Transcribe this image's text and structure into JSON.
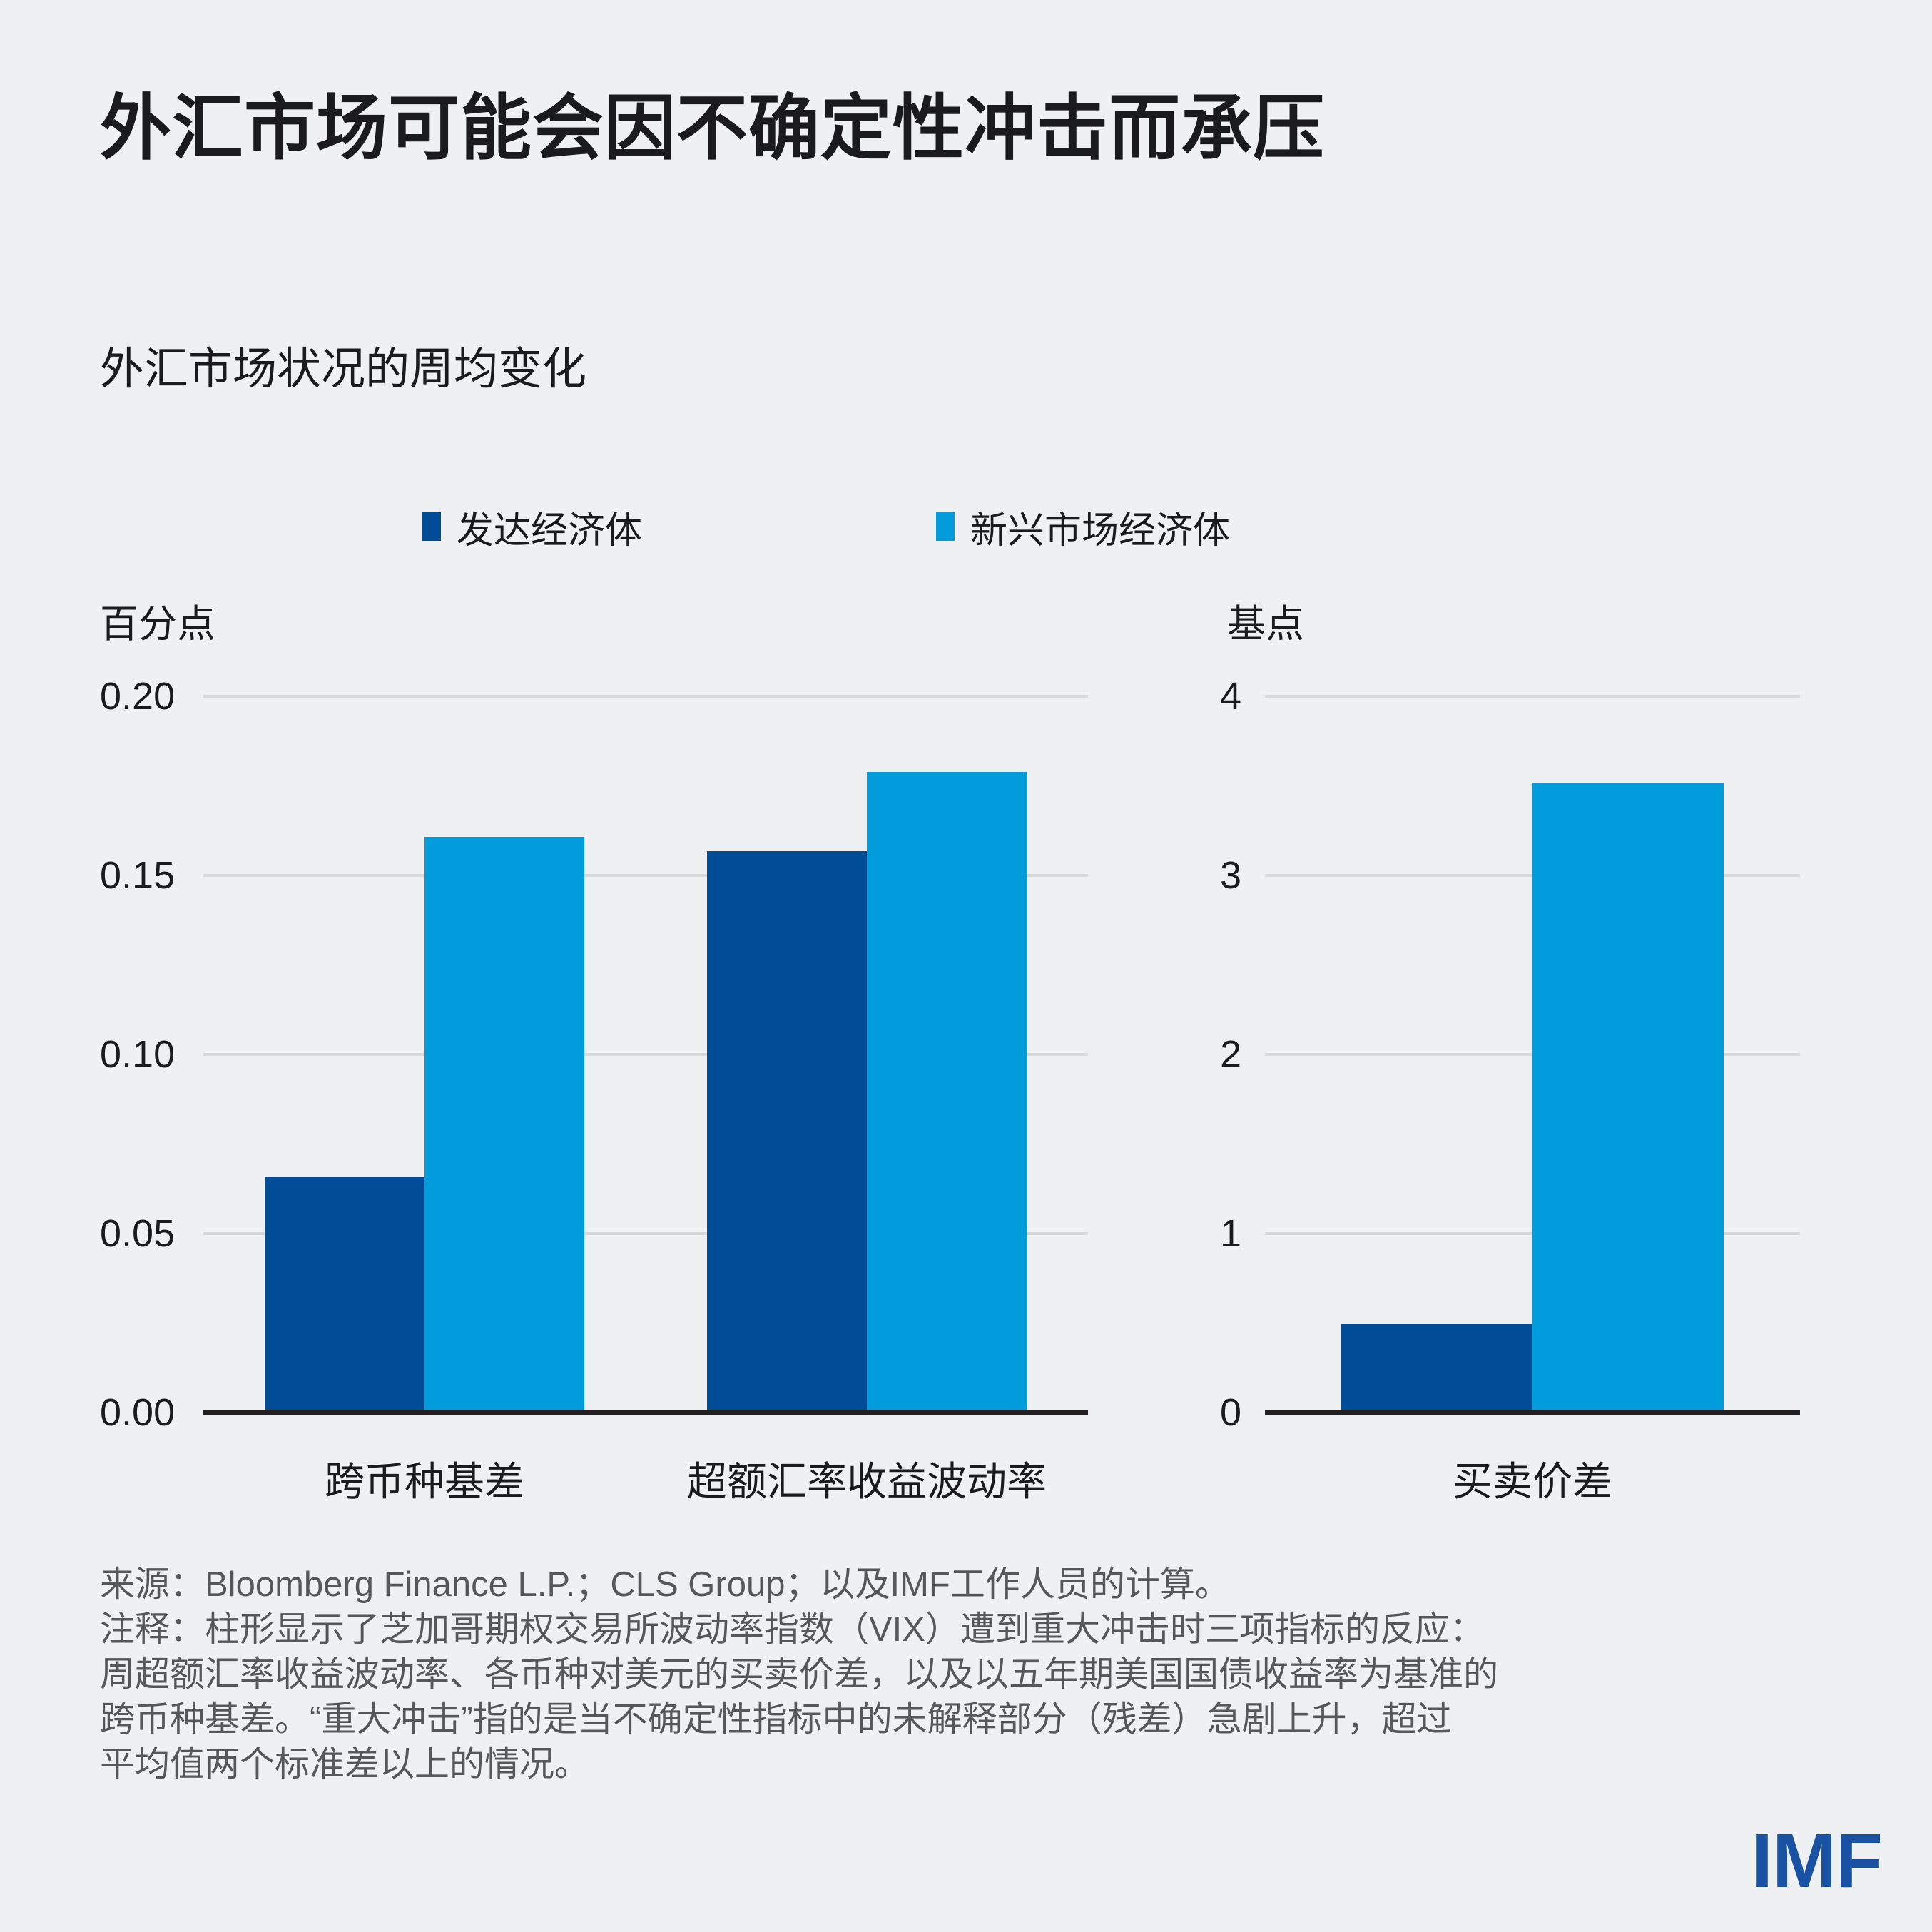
{
  "header": {
    "title": "外汇市场可能会因不确定性冲击而承压"
  },
  "chart": {
    "subtitle": "外汇市场状况的周均变化",
    "legend": [
      {
        "label": "发达经济体",
        "color": "#004C96"
      },
      {
        "label": "新兴市场经济体",
        "color": "#009CDB"
      }
    ]
  },
  "chart_data": [
    {
      "type": "bar",
      "title": "外汇市场状况的周均变化",
      "ylabel": "百分点",
      "categories": [
        "跨币种基差",
        "超额汇率收益波动率"
      ],
      "series": [
        {
          "name": "发达经济体",
          "color": "#004C96",
          "values": [
            0.065,
            0.156
          ]
        },
        {
          "name": "新兴市场经济体",
          "color": "#009CDB",
          "values": [
            0.16,
            0.178
          ]
        }
      ],
      "ylim": [
        0,
        0.2
      ],
      "yticks": [
        "0.20",
        "0.15",
        "0.10",
        "0.05",
        "0.00"
      ],
      "grid": true,
      "legend_position": "top"
    },
    {
      "type": "bar",
      "title": "",
      "ylabel": "基点",
      "categories": [
        "买卖价差"
      ],
      "series": [
        {
          "name": "发达经济体",
          "color": "#004C96",
          "values": [
            0.48
          ]
        },
        {
          "name": "新兴市场经济体",
          "color": "#009CDB",
          "values": [
            3.5
          ]
        }
      ],
      "ylim": [
        0,
        4
      ],
      "yticks": [
        "4",
        "3",
        "2",
        "1",
        "0"
      ],
      "grid": true,
      "legend_position": "top"
    }
  ],
  "footer": {
    "source": "来源：Bloomberg Finance L.P.；CLS Group；以及IMF工作人员的计算。",
    "note_lines": [
      "注释：柱形显示了芝加哥期权交易所波动率指数（VIX）遭到重大冲击时三项指标的反应：",
      "周超额汇率收益波动率、各币种对美元的买卖价差，以及以五年期美国国债收益率为基准的",
      "跨币种基差。“重大冲击”指的是当不确定性指标中的未解释部分（残差）急剧上升，超过",
      "平均值两个标准差以上的情况。"
    ],
    "logo": "IMF"
  }
}
